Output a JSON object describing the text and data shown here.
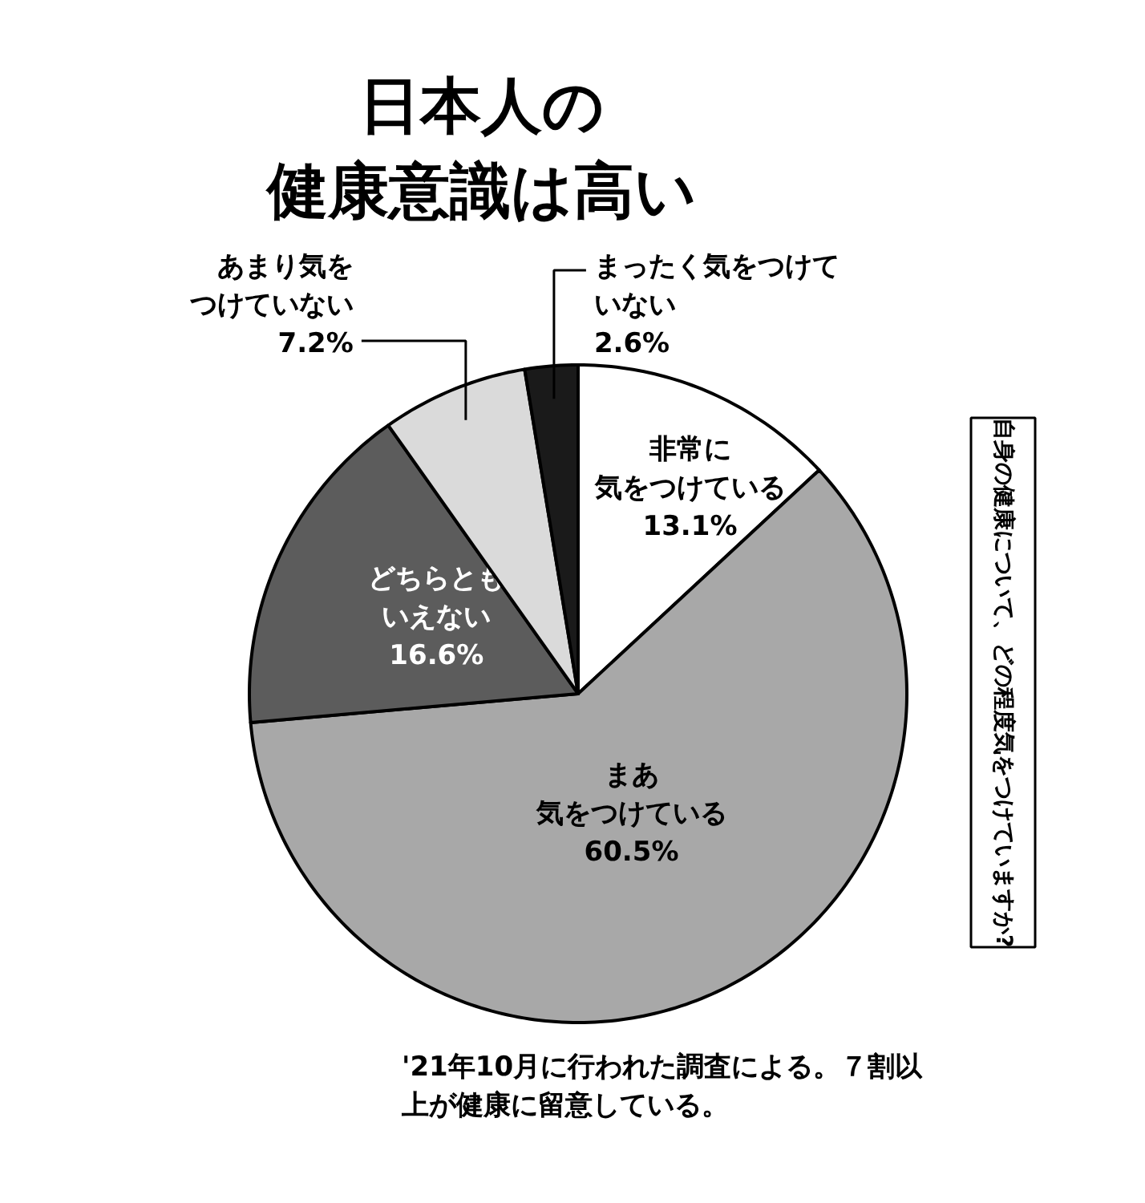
{
  "chart_data": {
    "type": "pie",
    "title": "日本人の健康意識は高い",
    "subtitle": "自身の健康について、どの程度気をつけていますか?",
    "categories": [
      "非常に気をつけている",
      "まあ気をつけている",
      "どちらともいえない",
      "あまり気をつけていない",
      "まったく気をつけていない"
    ],
    "values": [
      13.1,
      60.5,
      16.6,
      7.2,
      2.6
    ],
    "value_labels": [
      "13.1%",
      "60.5%",
      "16.6%",
      "7.2%",
      "2.6%"
    ],
    "colors": [
      "#ffffff",
      "#a8a8a8",
      "#5c5c5c",
      "#dadada",
      "#1a1a1a"
    ],
    "annotations": [
      "'21年10月に行われた調査による。７割以上が健康に留意している。"
    ]
  }
}
